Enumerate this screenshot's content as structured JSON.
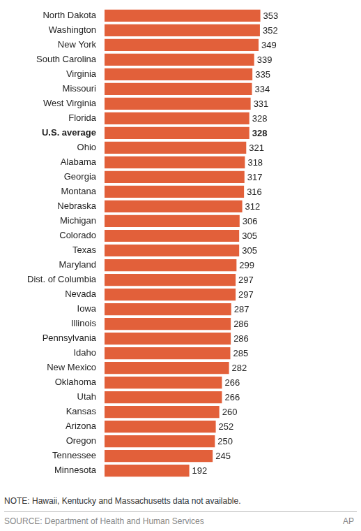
{
  "chart_data": {
    "type": "bar",
    "orientation": "horizontal",
    "categories": [
      "North Dakota",
      "Washington",
      "New York",
      "South Carolina",
      "Virginia",
      "Missouri",
      "West Virginia",
      "Florida",
      "U.S. average",
      "Ohio",
      "Alabama",
      "Georgia",
      "Montana",
      "Nebraska",
      "Michigan",
      "Colorado",
      "Texas",
      "Maryland",
      "Dist. of Columbia",
      "Nevada",
      "Iowa",
      "Illinois",
      "Pennsylvania",
      "Idaho",
      "New Mexico",
      "Oklahoma",
      "Utah",
      "Kansas",
      "Arizona",
      "Oregon",
      "Tennessee",
      "Minnesota"
    ],
    "values": [
      353,
      352,
      349,
      339,
      335,
      334,
      331,
      328,
      328,
      321,
      318,
      317,
      316,
      312,
      306,
      305,
      305,
      299,
      297,
      297,
      287,
      286,
      286,
      285,
      282,
      266,
      266,
      260,
      252,
      250,
      245,
      192
    ],
    "color": "#e2603a",
    "xlim": [
      0,
      360
    ],
    "grid": false,
    "data_labels": true,
    "tick_labels": "y",
    "note": "NOTE: Hawaii, Kentucky and Massachusetts data not available.",
    "source": "SOURCE: Department of Health and Human Services",
    "credit": "AP"
  }
}
